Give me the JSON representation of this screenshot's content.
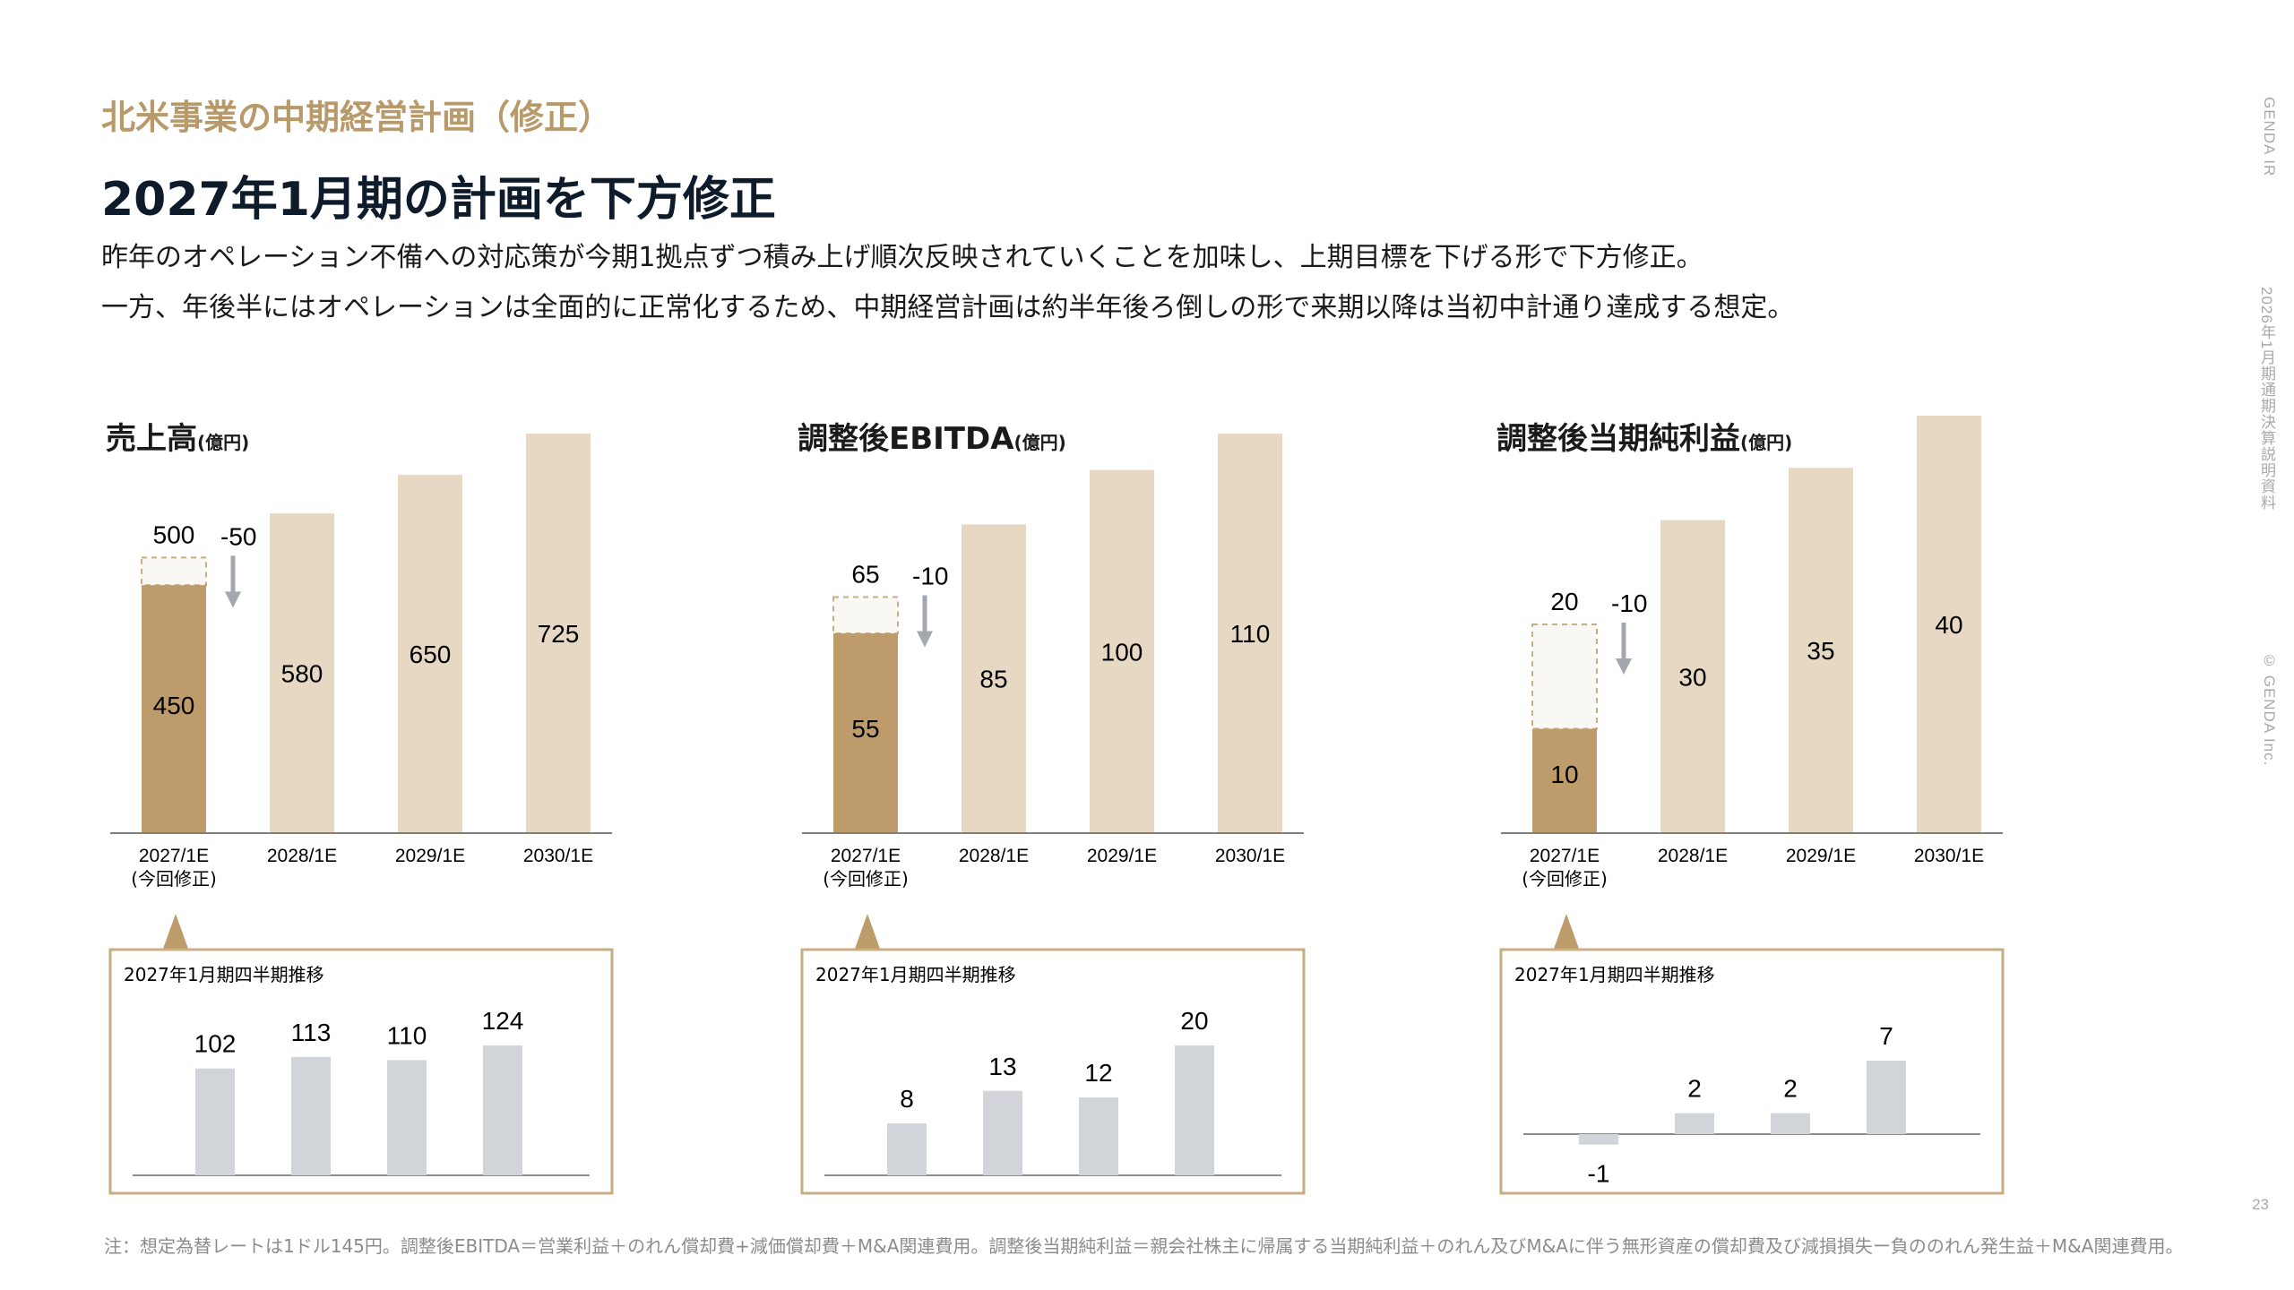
{
  "header": {
    "subtitle": "北米事業の中期経営計画（修正）",
    "title": "2027年1月期の計画を下方修正",
    "lines": [
      "昨年のオペレーション不備への対応策が今期1拠点ずつ積み上げ順次反映されていくことを加味し、上期目標を下げる形で下方修正。",
      "一方、年後半にはオペレーションは全面的に正常化するため、中期経営計画は約半年後ろ倒しの形で来期以降は当初中計通り達成する想定。"
    ]
  },
  "side": {
    "brand": "GENDA IR",
    "doc": "2026年1月期通期決算説明資料",
    "copyright": "© GENDA Inc.",
    "page": "23"
  },
  "footnote": "注：想定為替レートは1ドル145円。調整後EBITDA＝営業利益＋のれん償却費+減価償却費＋M&A関連費用。調整後当期純利益＝親会社株主に帰属する当期純利益＋のれん及びM&Aに伴う無形資産の償却費及び減損損失ー負ののれん発生益＋M&A関連費用。",
  "colors": {
    "accent": "#bd9b6a",
    "plan": "#e6d8c3",
    "prior": "#faf8f4",
    "quarter": "#d1d5d9",
    "arrow": "#a2a8ae",
    "border": "#c7ae83"
  },
  "chart_data": [
    {
      "type": "bar",
      "title": "売上高",
      "unit": "(億円)",
      "categories": [
        "2027/1E",
        "2028/1E",
        "2029/1E",
        "2030/1E"
      ],
      "category_note": "(今回修正)",
      "values": [
        450,
        580,
        650,
        725
      ],
      "prior_value": 500,
      "revision_label": "-50",
      "quarterly": {
        "title": "2027年1月期四半期推移",
        "values": [
          102,
          113,
          110,
          124
        ]
      }
    },
    {
      "type": "bar",
      "title": "調整後EBITDA",
      "unit": "(億円)",
      "categories": [
        "2027/1E",
        "2028/1E",
        "2029/1E",
        "2030/1E"
      ],
      "category_note": "(今回修正)",
      "values": [
        55,
        85,
        100,
        110
      ],
      "prior_value": 65,
      "revision_label": "-10",
      "quarterly": {
        "title": "2027年1月期四半期推移",
        "values": [
          8,
          13,
          12,
          20
        ]
      }
    },
    {
      "type": "bar",
      "title": "調整後当期純利益",
      "unit": "(億円)",
      "categories": [
        "2027/1E",
        "2028/1E",
        "2029/1E",
        "2030/1E"
      ],
      "category_note": "(今回修正)",
      "values": [
        10,
        30,
        35,
        40
      ],
      "prior_value": 20,
      "revision_label": "-10",
      "quarterly": {
        "title": "2027年1月期四半期推移",
        "values": [
          -1,
          2,
          2,
          7
        ]
      }
    }
  ]
}
